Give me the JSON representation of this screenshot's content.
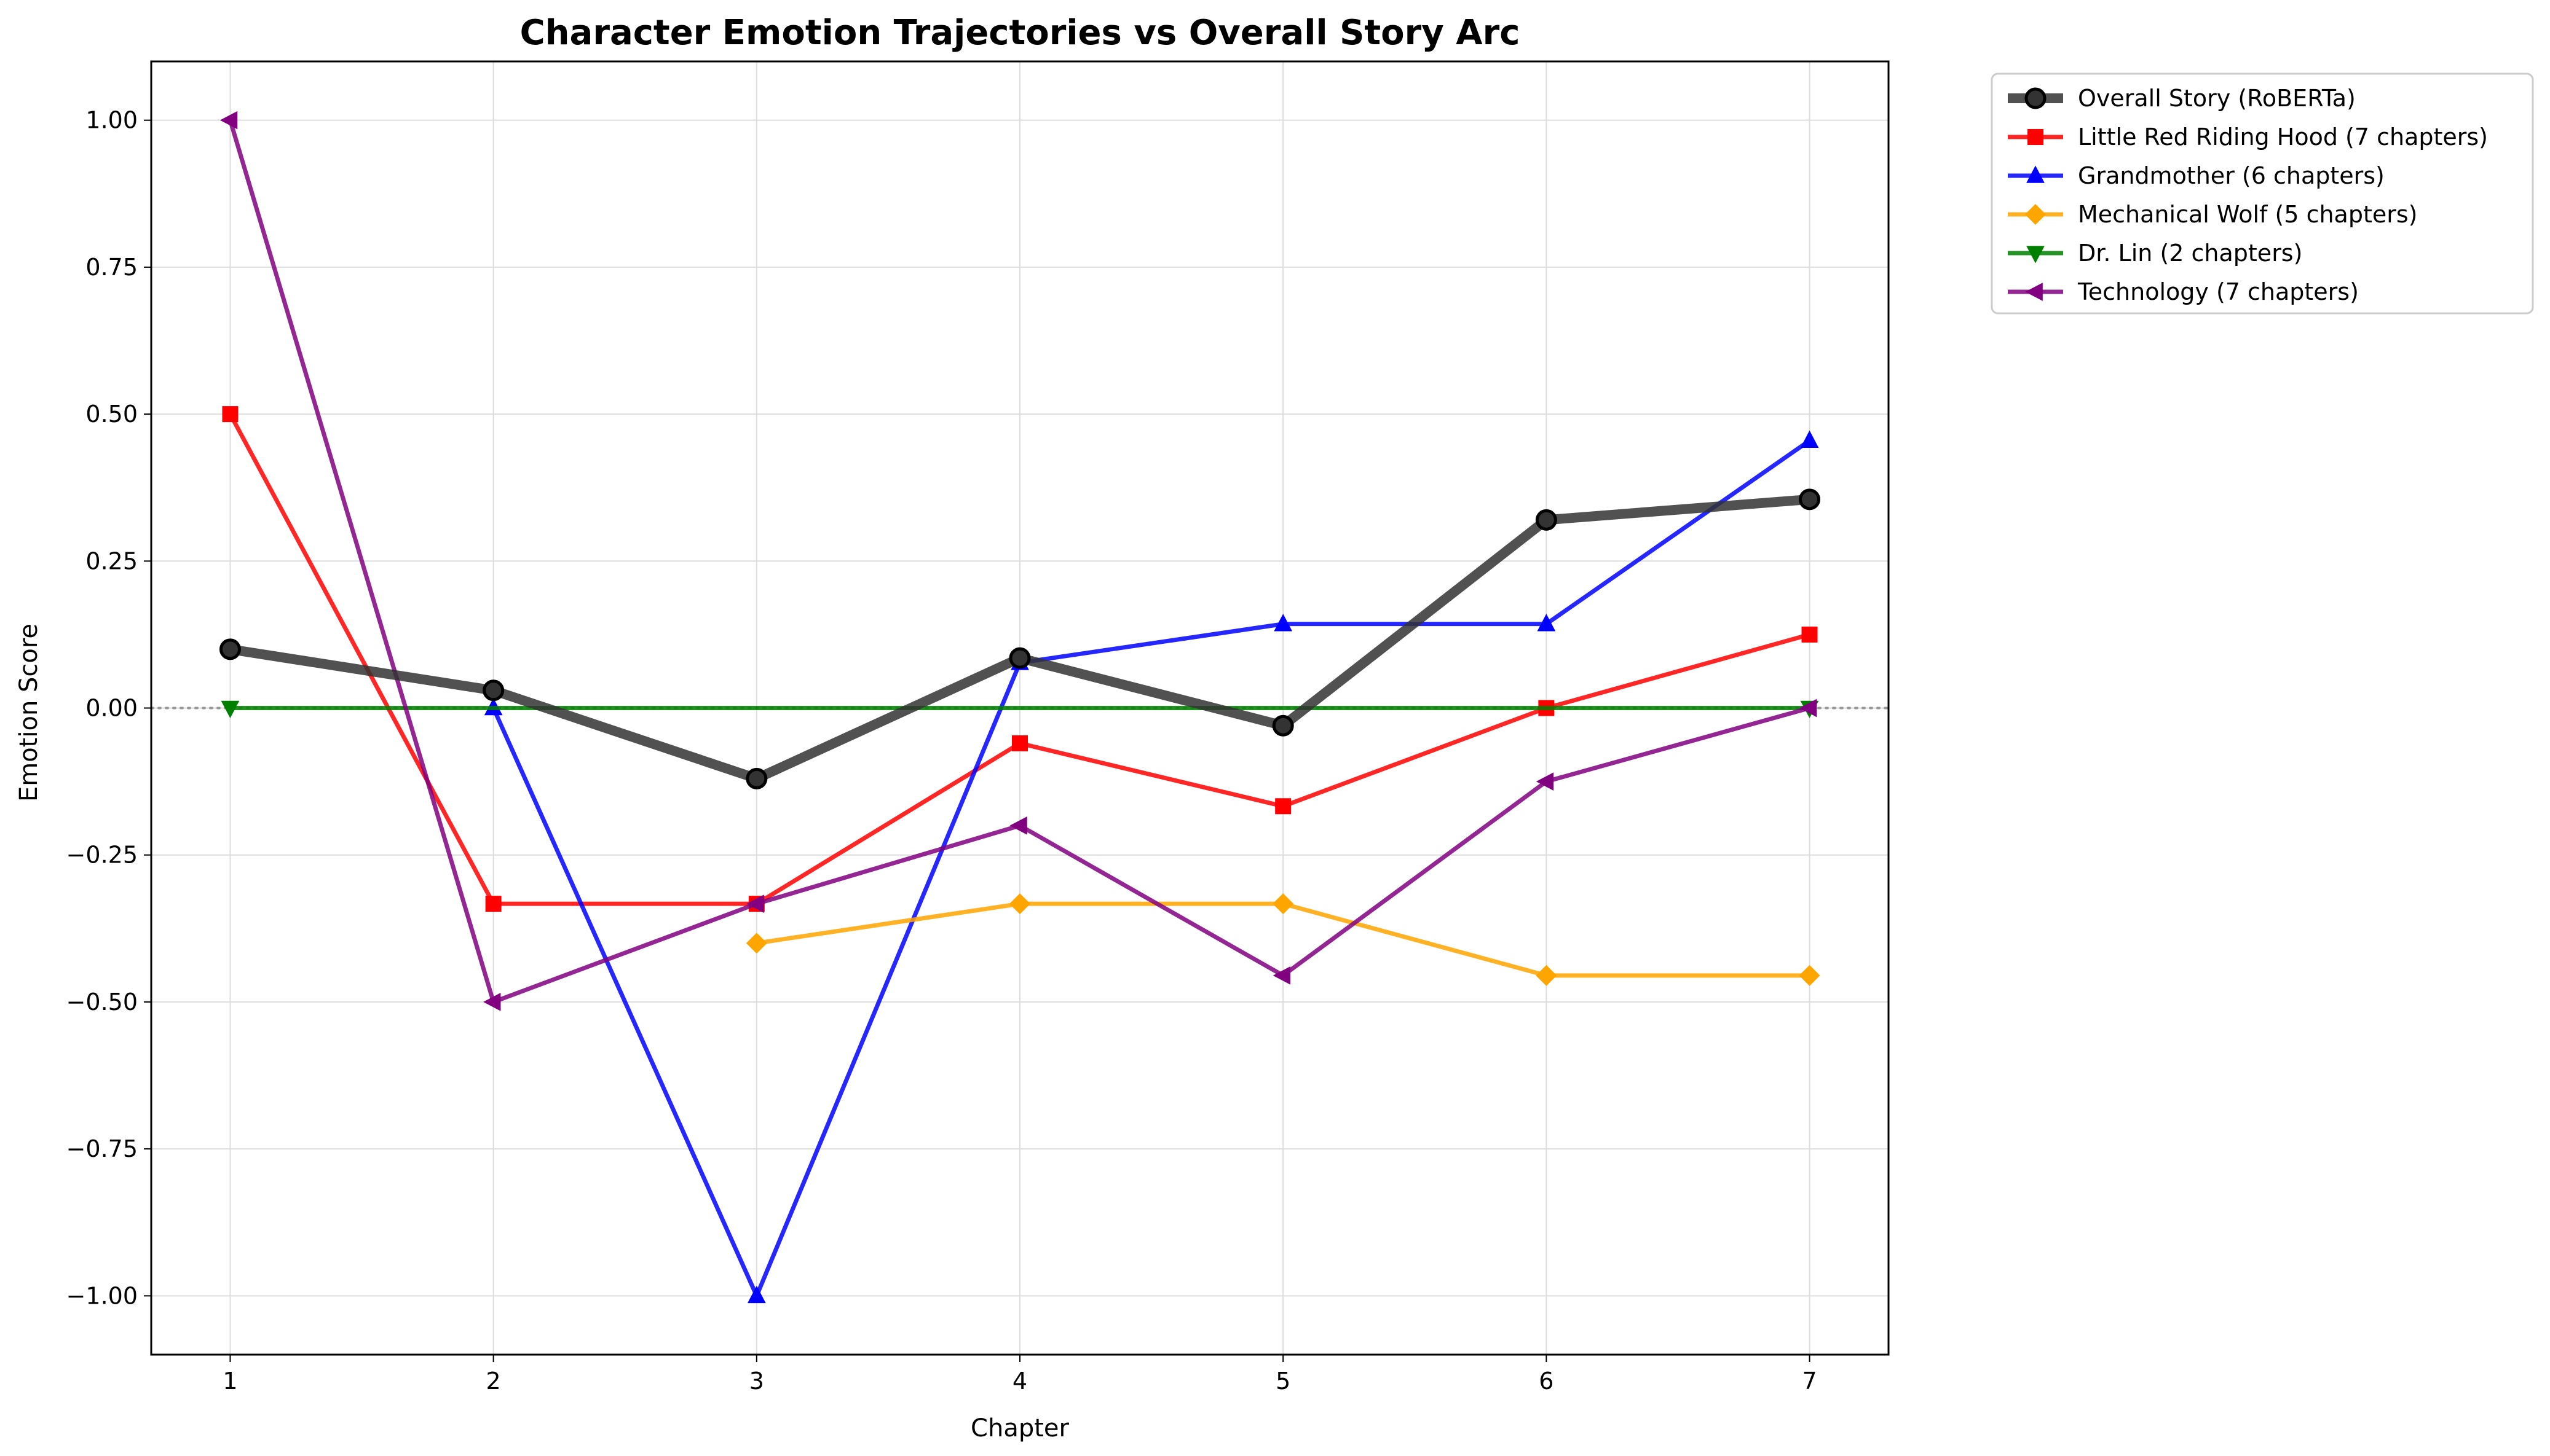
{
  "chart_data": {
    "type": "line",
    "title": "Character Emotion Trajectories vs Overall Story Arc",
    "xlabel": "Chapter",
    "ylabel": "Emotion Score",
    "xlim": [
      0.7,
      7.3
    ],
    "ylim": [
      -1.1,
      1.1
    ],
    "x_ticks": [
      1,
      2,
      3,
      4,
      5,
      6,
      7
    ],
    "x_tick_labels": [
      "1",
      "2",
      "3",
      "4",
      "5",
      "6",
      "7"
    ],
    "y_ticks": [
      -1.0,
      -0.75,
      -0.5,
      -0.25,
      0.0,
      0.25,
      0.5,
      0.75,
      1.0
    ],
    "y_tick_labels": [
      "−1.00",
      "−0.75",
      "−0.50",
      "−0.25",
      "0.00",
      "0.25",
      "0.50",
      "0.75",
      "1.00"
    ],
    "grid": true,
    "reference_line": {
      "y": 0,
      "style": "dotted",
      "color": "#999999"
    },
    "legend_position": "outside-top-right",
    "series": [
      {
        "name": "Overall Story (RoBERTa)",
        "color": "#333333",
        "marker": "circle",
        "emphasis": "thick",
        "x": [
          1,
          2,
          3,
          4,
          5,
          6,
          7
        ],
        "y": [
          0.1,
          0.03,
          -0.12,
          0.085,
          -0.03,
          0.32,
          0.355
        ]
      },
      {
        "name": "Little Red Riding Hood (7 chapters)",
        "color": "#ff0000",
        "marker": "square",
        "x": [
          1,
          2,
          3,
          4,
          5,
          6,
          7
        ],
        "y": [
          0.5,
          -0.333,
          -0.333,
          -0.06,
          -0.167,
          0.0,
          0.125
        ]
      },
      {
        "name": "Grandmother (6 chapters)",
        "color": "#0000ff",
        "marker": "triangle-up",
        "x": [
          2,
          3,
          4,
          5,
          6,
          7
        ],
        "y": [
          0.0,
          -1.0,
          0.077,
          0.143,
          0.143,
          0.455
        ]
      },
      {
        "name": "Mechanical Wolf (5 chapters)",
        "color": "#ffa500",
        "marker": "diamond",
        "x": [
          3,
          4,
          5,
          6,
          7
        ],
        "y": [
          -0.4,
          -0.333,
          -0.333,
          -0.455,
          -0.455
        ]
      },
      {
        "name": "Dr. Lin (2 chapters)",
        "color": "#008000",
        "marker": "triangle-down",
        "x": [
          1,
          7
        ],
        "y": [
          0.0,
          0.0
        ]
      },
      {
        "name": "Technology (7 chapters)",
        "color": "#800080",
        "marker": "triangle-left",
        "x": [
          1,
          2,
          3,
          4,
          5,
          6,
          7
        ],
        "y": [
          1.0,
          -0.5,
          -0.333,
          -0.2,
          -0.455,
          -0.125,
          0.0
        ]
      }
    ]
  }
}
